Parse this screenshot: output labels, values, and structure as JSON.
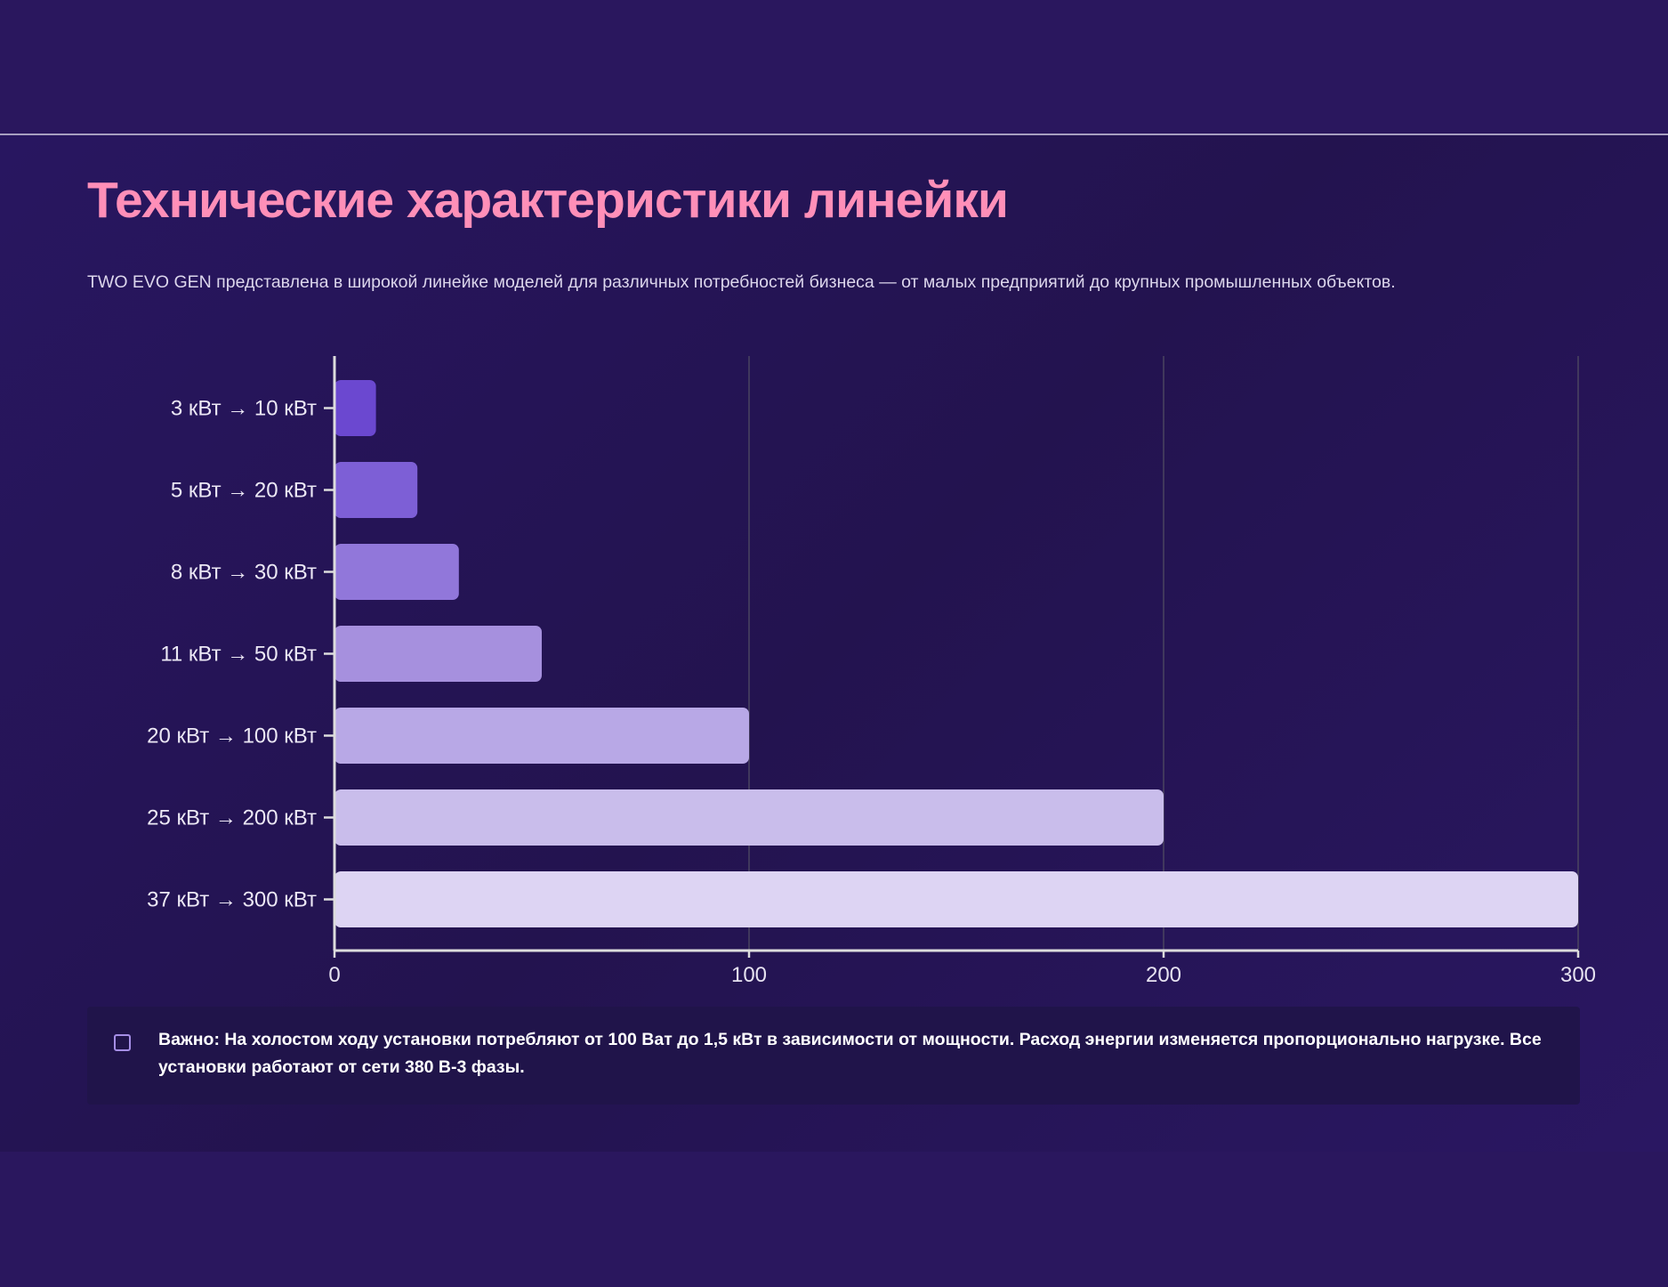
{
  "title": "Технические характеристики линейки",
  "subtitle": "TWO EVO GEN представлена в широкой линейке моделей для различных потребностей бизнеса — от малых предприятий до крупных промышленных объектов.",
  "note": {
    "icon": "note-icon",
    "text": "Важно: На холостом ходу установки потребляют от 100 Ват до 1,5 кВт в зависимости от мощности. Расход энергии изменяется пропорционально нагрузке. Все установки работают от сети 380 В-3 фазы."
  },
  "chart_data": {
    "type": "bar",
    "orientation": "horizontal",
    "categories": [
      "3 кВт → 10 кВт",
      "5 кВт → 20 кВт",
      "8 кВт → 30 кВт",
      "11 кВт → 50 кВт",
      "20 кВт → 100 кВт",
      "25 кВт → 200 кВт",
      "37 кВт → 300 кВт"
    ],
    "values": [
      10,
      20,
      30,
      50,
      100,
      200,
      300
    ],
    "xlim": [
      0,
      300
    ],
    "xticks": [
      "0",
      "100",
      "200",
      "300"
    ],
    "colors": [
      "#6b48d0",
      "#7d5fd6",
      "#9177da",
      "#a690de",
      "#b8a8e6",
      "#c9bdeb",
      "#ddd4f3"
    ],
    "grid": true
  }
}
